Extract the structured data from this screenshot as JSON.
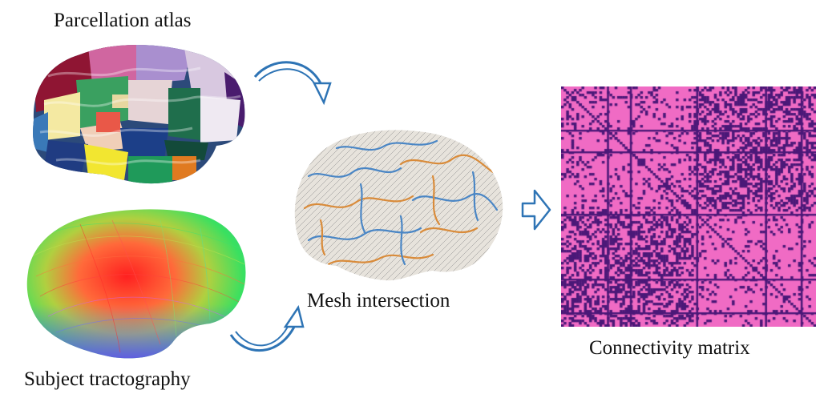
{
  "labels": {
    "atlas": "Parcellation atlas",
    "tractography": "Subject tractography",
    "mesh": "Mesh intersection",
    "matrix": "Connectivity matrix"
  },
  "colors": {
    "arrow": "#2e74b5",
    "matrix_pink": "#f06bc4",
    "matrix_purple": "#4b1878",
    "mesh_blue": "#4a86c5",
    "mesh_orange": "#d98b3a"
  },
  "icons": {
    "curved_arrows": "curved-arrow-icon",
    "flow_arrow": "hollow-right-arrow-icon"
  }
}
